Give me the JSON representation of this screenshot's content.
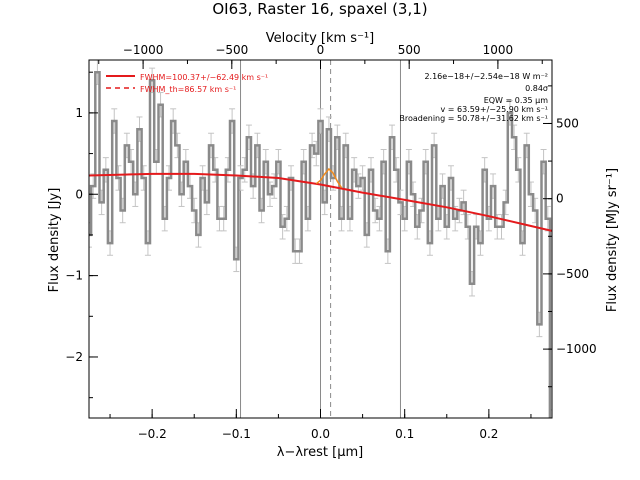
{
  "chart_data": {
    "type": "line",
    "title": "OI63, Raster 16, spaxel (3,1)",
    "xlabel": "λ−λrest [μm]",
    "ylabel": "Flux density [Jy]",
    "y2label": "Flux density [MJy sr⁻¹]",
    "x2label": "Velocity [km s⁻¹]",
    "xlim": [
      -0.275,
      0.275
    ],
    "ylim": [
      -2.75,
      1.65
    ],
    "x_ticks": [
      -0.2,
      -0.1,
      0.0,
      0.1,
      0.2
    ],
    "x_tick_labels": [
      "−0.2",
      "−0.1",
      "0.0",
      "0.1",
      "0.2"
    ],
    "y_ticks": [
      -2,
      -1,
      0,
      1
    ],
    "y_tick_labels": [
      "−2",
      "−1",
      "0",
      "1"
    ],
    "velocity_lim": [
      -1305,
      1305
    ],
    "velocity_ticks": [
      -1000,
      -500,
      0,
      500,
      1000
    ],
    "velocity_tick_labels": [
      "−1000",
      "−500",
      "0",
      "500",
      "1000"
    ],
    "y2_lim": [
      -1458,
      922
    ],
    "y2_ticks": [
      -1000,
      -500,
      0,
      500
    ],
    "y2_tick_labels": [
      "−1000",
      "−500",
      "0",
      "500"
    ],
    "vertical_lines": [
      -0.095,
      0.0,
      0.095
    ],
    "dashed_line": 0.012,
    "legend": [
      {
        "label": "FWHM=100.37+/−62.49 km s⁻¹",
        "style": "solid",
        "color": "#e41a1c"
      },
      {
        "label": "FWHM_th=86.57 km s⁻¹",
        "style": "dashed",
        "color": "#e41a1c"
      }
    ],
    "annotations": [
      "2.16e−18+/−2.54e−18 W m⁻²",
      "0.84σ",
      "EQW = 0.35 μm",
      "v = 63.59+/−25.90 km s⁻¹",
      "Broadening = 50.78+/−31.62 km s⁻¹"
    ],
    "series": [
      {
        "name": "spectrum",
        "x": [
          -0.275,
          -0.27,
          -0.265,
          -0.26,
          -0.255,
          -0.25,
          -0.245,
          -0.24,
          -0.235,
          -0.23,
          -0.225,
          -0.22,
          -0.215,
          -0.21,
          -0.205,
          -0.2,
          -0.195,
          -0.19,
          -0.185,
          -0.18,
          -0.175,
          -0.17,
          -0.165,
          -0.16,
          -0.155,
          -0.15,
          -0.145,
          -0.14,
          -0.135,
          -0.13,
          -0.125,
          -0.12,
          -0.115,
          -0.11,
          -0.105,
          -0.1,
          -0.095,
          -0.09,
          -0.085,
          -0.08,
          -0.075,
          -0.07,
          -0.065,
          -0.06,
          -0.055,
          -0.05,
          -0.045,
          -0.04,
          -0.035,
          -0.03,
          -0.025,
          -0.02,
          -0.015,
          -0.01,
          -0.005,
          0.0,
          0.005,
          0.01,
          0.015,
          0.02,
          0.025,
          0.03,
          0.035,
          0.04,
          0.045,
          0.05,
          0.055,
          0.06,
          0.065,
          0.07,
          0.075,
          0.08,
          0.085,
          0.09,
          0.095,
          0.1,
          0.105,
          0.11,
          0.115,
          0.12,
          0.125,
          0.13,
          0.135,
          0.14,
          0.145,
          0.15,
          0.155,
          0.16,
          0.165,
          0.17,
          0.175,
          0.18,
          0.185,
          0.19,
          0.195,
          0.2,
          0.205,
          0.21,
          0.215,
          0.22,
          0.225,
          0.23,
          0.235,
          0.24,
          0.245,
          0.25,
          0.255,
          0.26,
          0.265,
          0.27,
          0.275
        ],
        "y": [
          -0.5,
          0.1,
          1.5,
          -0.1,
          0.3,
          -0.6,
          0.9,
          0.2,
          -0.2,
          0.6,
          0.4,
          0.0,
          0.8,
          0.2,
          -0.6,
          1.4,
          0.4,
          1.1,
          -0.3,
          0.2,
          0.9,
          0.6,
          0.0,
          0.4,
          0.1,
          -0.2,
          -0.5,
          0.2,
          -0.1,
          0.6,
          0.3,
          -0.3,
          -0.3,
          0.3,
          0.9,
          -0.8,
          0.2,
          0.3,
          0.7,
          0.1,
          0.6,
          -0.2,
          0.4,
          0.0,
          0.1,
          0.4,
          -0.4,
          -0.3,
          0.2,
          -0.7,
          -0.7,
          0.4,
          -0.3,
          0.6,
          0.5,
          0.9,
          -0.1,
          0.8,
          0.2,
          0.7,
          -0.3,
          0.6,
          -0.3,
          0.3,
          0.1,
          0.2,
          -0.5,
          0.3,
          -0.2,
          -0.3,
          0.4,
          -0.7,
          0.7,
          0.3,
          -0.1,
          -0.3,
          0.4,
          0.0,
          -0.4,
          -0.2,
          0.4,
          -0.6,
          0.6,
          -0.3,
          0.1,
          -0.4,
          0.2,
          -0.3,
          -0.2,
          -0.1,
          -0.4,
          -1.1,
          -0.4,
          -0.6,
          0.3,
          -0.3,
          0.1,
          -0.4,
          -0.4,
          -0.1,
          1.0,
          0.7,
          0.3,
          -0.6,
          0.6,
          0.0,
          -0.2,
          -1.6,
          0.4,
          -0.3,
          -2.8
        ],
        "err": 0.15
      },
      {
        "name": "continuum",
        "x": [
          -0.275,
          -0.2,
          -0.15,
          -0.1,
          -0.05,
          0.0,
          0.05,
          0.1,
          0.15,
          0.2,
          0.25,
          0.275
        ],
        "y": [
          0.23,
          0.25,
          0.25,
          0.23,
          0.2,
          0.12,
          0.02,
          -0.07,
          -0.16,
          -0.27,
          -0.39,
          -0.45
        ]
      },
      {
        "name": "line fit",
        "x": [
          -0.005,
          0.0,
          0.005,
          0.01,
          0.015,
          0.02,
          0.025
        ],
        "y": [
          0.13,
          0.17,
          0.25,
          0.31,
          0.26,
          0.16,
          0.08
        ]
      }
    ]
  }
}
